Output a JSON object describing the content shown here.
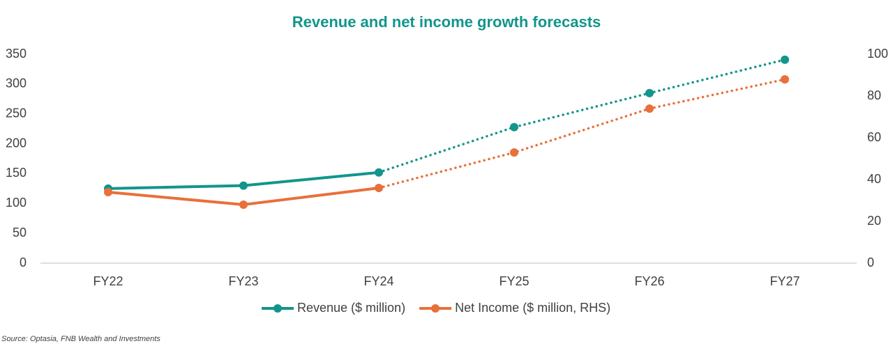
{
  "chart_data": {
    "type": "line",
    "title": "Revenue and net income growth forecasts",
    "categories": [
      "FY22",
      "FY23",
      "FY24",
      "FY25",
      "FY26",
      "FY27"
    ],
    "forecast_from": "FY24",
    "series": [
      {
        "name": "Revenue ($ million)",
        "color": "#12958c",
        "values": [
          125,
          130,
          152,
          228,
          285,
          341
        ]
      },
      {
        "name": "Net Income ($ million, RHS)",
        "color": "#e8703a",
        "axis": "y2",
        "values": [
          34,
          28,
          36,
          53,
          74,
          88
        ]
      }
    ],
    "ylim": [
      0,
      350
    ],
    "yticks": [
      0,
      50,
      100,
      150,
      200,
      250,
      300,
      350
    ],
    "y2lim": [
      0,
      100
    ],
    "y2ticks": [
      0,
      20,
      40,
      60,
      80,
      100
    ],
    "grid": false,
    "legend": "bottom",
    "source": "Source: Optasia, FNB Wealth and Investments"
  }
}
